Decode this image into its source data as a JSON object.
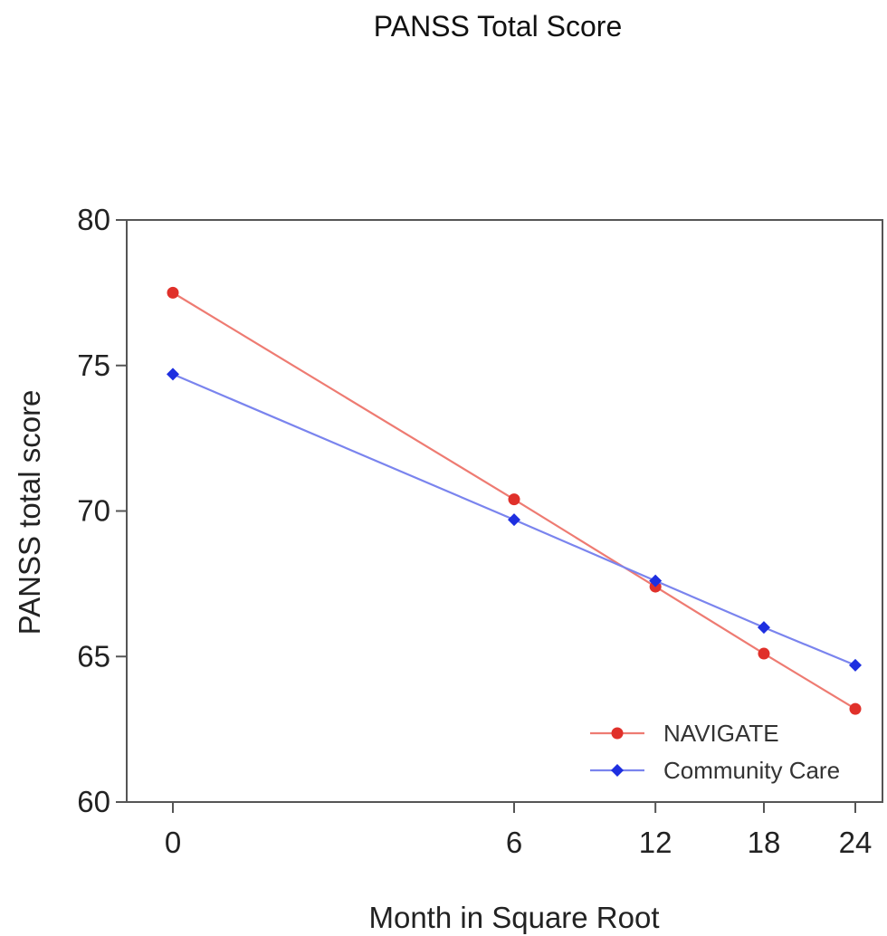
{
  "chart_data": {
    "type": "line",
    "title": "PANSS Total Score",
    "xlabel": "Month in Square Root",
    "ylabel": "PANSS total score",
    "x_scale": "sqrt",
    "xlim": [
      0,
      24
    ],
    "ylim": [
      60,
      80
    ],
    "x_ticks": [
      0,
      6,
      12,
      18,
      24
    ],
    "y_ticks": [
      60,
      65,
      70,
      75,
      80
    ],
    "grid": false,
    "legend_position": "bottom-right",
    "series": [
      {
        "name": "NAVIGATE",
        "color": "#e0302a",
        "line_color": "#ee7b72",
        "marker": "circle",
        "x": [
          0,
          6,
          12,
          18,
          24
        ],
        "y": [
          77.5,
          70.4,
          67.4,
          65.1,
          63.2
        ]
      },
      {
        "name": "Community Care",
        "color": "#1e2fe0",
        "line_color": "#7a84ee",
        "marker": "diamond",
        "x": [
          0,
          6,
          12,
          18,
          24
        ],
        "y": [
          74.7,
          69.7,
          67.6,
          66.0,
          64.7
        ]
      }
    ]
  }
}
